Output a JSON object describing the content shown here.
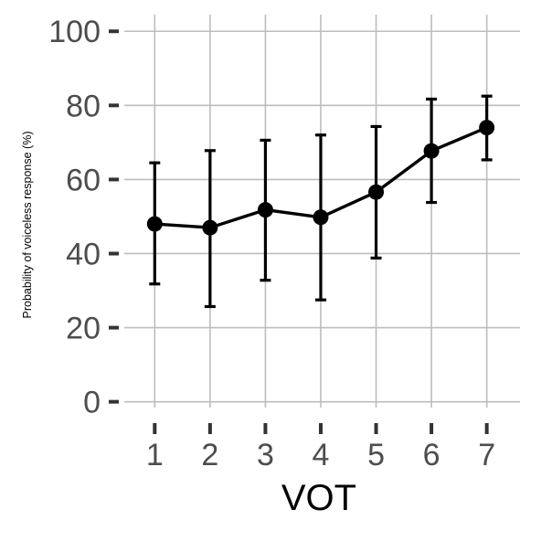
{
  "chart_data": {
    "type": "line",
    "xlabel": "VOT",
    "ylabel": "Probability of voiceless response (%)",
    "x": [
      1,
      2,
      3,
      4,
      5,
      6,
      7
    ],
    "x_tick_labels": [
      "1",
      "2",
      "3",
      "4",
      "5",
      "6",
      "7"
    ],
    "y_tick_labels": [
      "0",
      "20",
      "40",
      "60",
      "80",
      "100"
    ],
    "y_ticks": [
      0,
      20,
      40,
      60,
      80,
      100
    ],
    "ylim": [
      -6.5,
      104.5
    ],
    "xlim": [
      0.45,
      7.6
    ],
    "grid": true,
    "series": [
      {
        "values": [
          48,
          47,
          51.8,
          49.8,
          56.6,
          67.7,
          74
        ],
        "error_low": [
          31.8,
          25.7,
          32.8,
          27.5,
          38.8,
          53.8,
          65.3
        ],
        "error_high": [
          64.5,
          67.8,
          70.6,
          72.0,
          74.3,
          81.7,
          82.5
        ],
        "color": "#000000"
      }
    ],
    "colors": {
      "grid": "#bdbdbd",
      "tick_label": "#4d4d4d",
      "tick_mark": "#333333",
      "series": "#000000"
    }
  }
}
